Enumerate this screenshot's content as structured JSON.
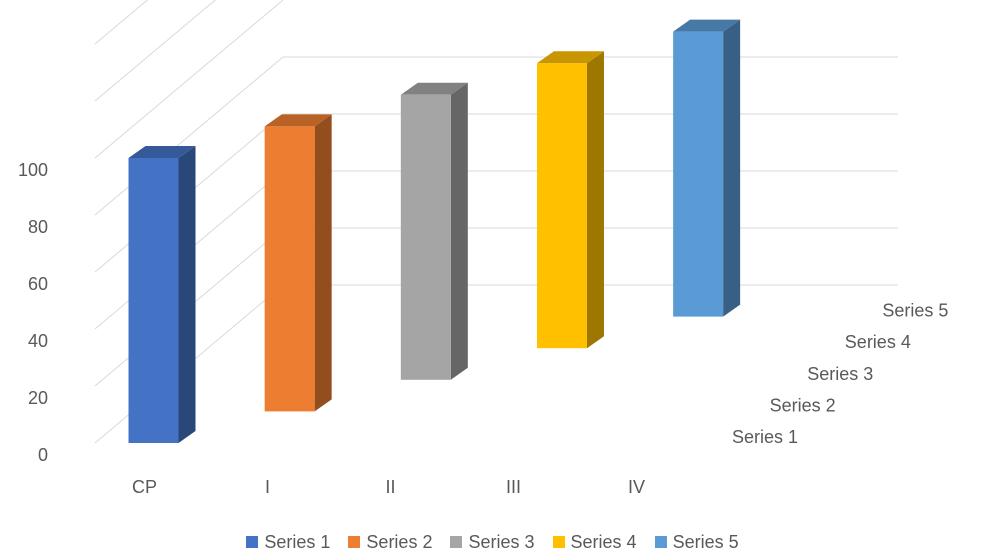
{
  "chart_data": {
    "type": "bar",
    "title": "",
    "xlabel": "",
    "ylabel": "",
    "categories": [
      "CP",
      "I",
      "II",
      "III",
      "IV"
    ],
    "depth_labels": [
      "Series 1",
      "Series 2",
      "Series 3",
      "Series 4",
      "Series 5"
    ],
    "yticks": [
      "0",
      "20",
      "40",
      "60",
      "80",
      "100"
    ],
    "ylim": [
      0,
      100
    ],
    "grid": true,
    "legend_position": "bottom",
    "series": [
      {
        "name": "Series 1",
        "color": "#4472C4",
        "values": [
          100,
          null,
          null,
          null,
          null
        ]
      },
      {
        "name": "Series 2",
        "color": "#ED7D31",
        "values": [
          null,
          100,
          null,
          null,
          null
        ]
      },
      {
        "name": "Series 3",
        "color": "#A5A5A5",
        "values": [
          null,
          null,
          100,
          null,
          null
        ]
      },
      {
        "name": "Series 4",
        "color": "#FFC000",
        "values": [
          null,
          null,
          null,
          100,
          null
        ]
      },
      {
        "name": "Series 5",
        "color": "#5B9BD5",
        "values": [
          null,
          null,
          null,
          null,
          100
        ]
      }
    ]
  }
}
